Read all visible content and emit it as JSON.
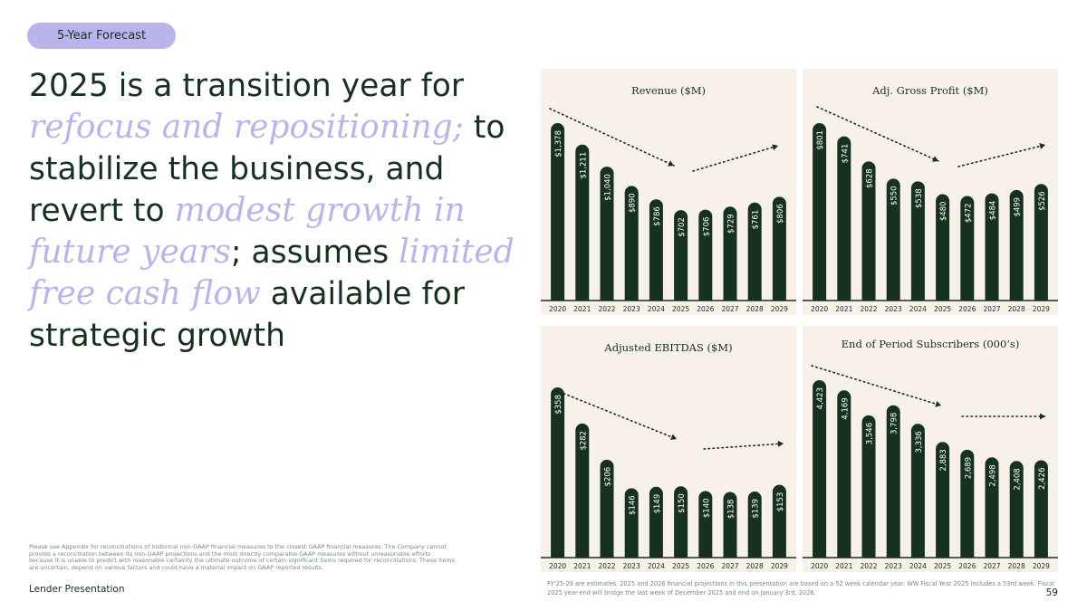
{
  "tag": "5-Year Forecast",
  "headline": {
    "p1": "2025 is a transition year for ",
    "em1": "refocus and repositioning;",
    "p2": " to stabilize the business, and revert to ",
    "em2": "modest growth in future years",
    "p3": "; assumes ",
    "em3": "limited free cash flow",
    "p4": " available for strategic growth"
  },
  "colors": {
    "bar": "#163120",
    "panel": "#f7f1ea",
    "accent": "#b9b4ec",
    "text": "#163120"
  },
  "chart_data": [
    {
      "type": "bar",
      "title": "Revenue ($M)",
      "categories": [
        "2020",
        "2021",
        "2022",
        "2023",
        "2024",
        "2025",
        "2026",
        "2027",
        "2028",
        "2029"
      ],
      "values": [
        1378,
        1211,
        1040,
        890,
        786,
        702,
        706,
        729,
        761,
        806
      ],
      "labels": [
        "$1,378",
        "$1,211",
        "$1,040",
        "$890",
        "$786",
        "$702",
        "$706",
        "$729",
        "$761",
        "$806"
      ]
    },
    {
      "type": "bar",
      "title": "Adj. Gross Profit ($M)",
      "categories": [
        "2020",
        "2021",
        "2022",
        "2023",
        "2024",
        "2025",
        "2026",
        "2027",
        "2028",
        "2029"
      ],
      "values": [
        801,
        741,
        628,
        550,
        538,
        480,
        472,
        484,
        499,
        526
      ],
      "labels": [
        "$801",
        "$741",
        "$628",
        "$550",
        "$538",
        "$480",
        "$472",
        "$484",
        "$499",
        "$526"
      ]
    },
    {
      "type": "bar",
      "title": "Adjusted EBITDAS ($M)",
      "categories": [
        "2020",
        "2021",
        "2022",
        "2023",
        "2024",
        "2025",
        "2026",
        "2027",
        "2028",
        "2029"
      ],
      "values": [
        358,
        282,
        206,
        146,
        149,
        150,
        140,
        138,
        139,
        153
      ],
      "labels": [
        "$358",
        "$282",
        "$206",
        "$146",
        "$149",
        "$150",
        "$140",
        "$138",
        "$139",
        "$153"
      ]
    },
    {
      "type": "bar",
      "title": "End of Period Subscribers (000’s)",
      "categories": [
        "2020",
        "2021",
        "2022",
        "2023",
        "2024",
        "2025",
        "2026",
        "2027",
        "2028",
        "2029"
      ],
      "values": [
        4423,
        4169,
        3546,
        3798,
        3336,
        2883,
        2689,
        2498,
        2408,
        2426
      ],
      "labels": [
        "4,423",
        "4,169",
        "3,546",
        "3,798",
        "3,336",
        "2,883",
        "2,689",
        "2,498",
        "2,408",
        "2,426"
      ]
    }
  ],
  "disclaimer": "Please see Appendix for reconciliations of historical non-GAAP financial measures to the closest GAAP financial measures. The Company cannot provide a reconciliation between its non-GAAP projections and the most directly comparable GAAP measures without unreasonable efforts because it is unable to predict with reasonable certainty the ultimate outcome of certain significant items required for reconciliations. These items are uncertain, depend on various factors and could have a material impact on GAAP reported results.",
  "footnote": "FY'25-29 are estimates. 2025 and 2026 financial projections in this presentation are based on a 52 week calendar year. WW Fiscal Year 2025 includes a 53rd week. Fiscal 2025 year-end will bridge the last week of December 2025 and end on January 3rd, 2026.",
  "footer": "Lender Presentation",
  "page_number": "59"
}
